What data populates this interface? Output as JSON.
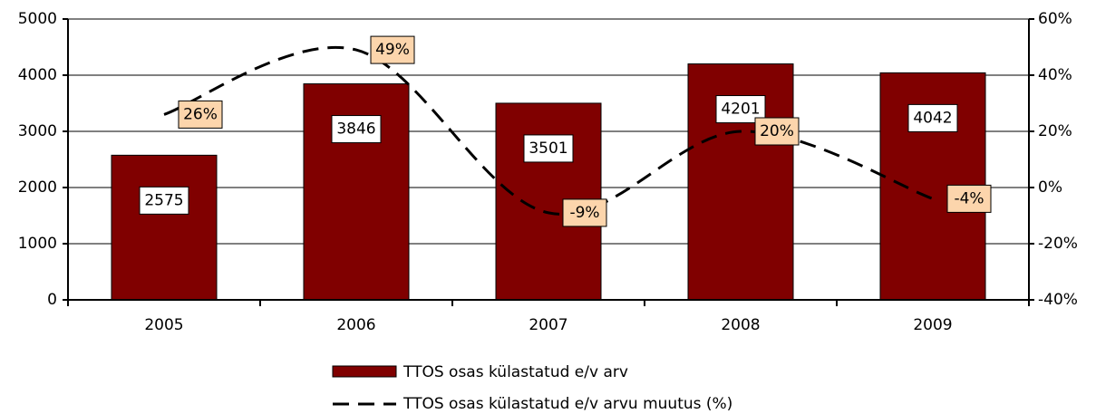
{
  "chart_data": {
    "type": "bar_line",
    "categories": [
      "2005",
      "2006",
      "2007",
      "2008",
      "2009"
    ],
    "series": [
      {
        "name": "TTOS osas külastatud e/v arv",
        "color": "#800000",
        "values": [
          2575,
          3846,
          3501,
          4201,
          4042
        ]
      },
      {
        "name": "TTOS osas külastatud e/v arvu muutus (%)",
        "color": "#000000",
        "axis": "y2",
        "values": [
          26,
          49,
          -9,
          20,
          -4
        ],
        "value_labels": [
          "26%",
          "49%",
          "-9%",
          "20%",
          "-4%"
        ]
      }
    ],
    "ylim": [
      0,
      5000
    ],
    "yticks": [
      0,
      1000,
      2000,
      3000,
      4000,
      5000
    ],
    "y2lim": [
      -40,
      60
    ],
    "y2ticks": [
      {
        "value": -40,
        "label": "-40%"
      },
      {
        "value": -20,
        "label": "-20%"
      },
      {
        "value": 0,
        "label": "0%"
      },
      {
        "value": 20,
        "label": "20%"
      },
      {
        "value": 40,
        "label": "40%"
      },
      {
        "value": 60,
        "label": "60%"
      }
    ],
    "grid": true
  }
}
